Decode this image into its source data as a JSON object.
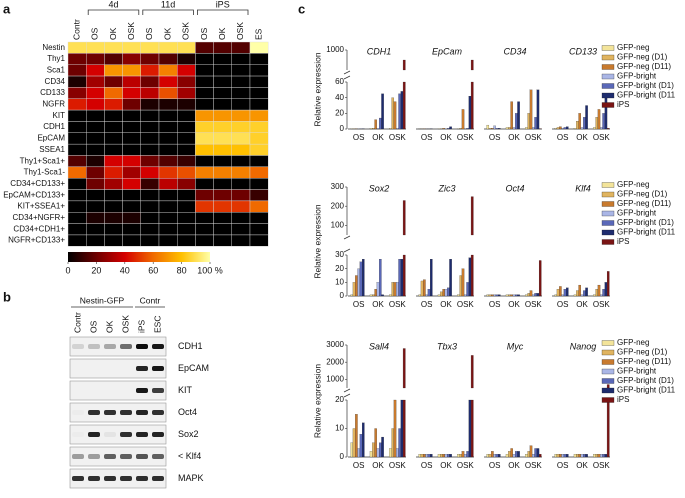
{
  "figure": {
    "panel_labels": [
      "a",
      "b",
      "c"
    ],
    "heatmap": {
      "groups": [
        "4d",
        "11d",
        "iPS"
      ],
      "columns": [
        "Contr",
        "OS",
        "OK",
        "OSK",
        "OS",
        "OK",
        "OSK",
        "OS",
        "OK",
        "OSK",
        "ES"
      ],
      "rows": [
        "Nestin",
        "Thy1",
        "Sca1",
        "CD34",
        "CD133",
        "NGFR",
        "KIT",
        "CDH1",
        "EpCAM",
        "SSEA1",
        "Thy1+Sca1+",
        "Thy1-Sca1-",
        "CD34+CD133+",
        "EpCAM+CD133+",
        "KIT+SSEA1+",
        "CD34+NGFR+",
        "CD34+CDH1+",
        "NGFR+CD133+"
      ],
      "values": [
        [
          90,
          90,
          90,
          90,
          90,
          90,
          90,
          15,
          15,
          15,
          100
        ],
        [
          20,
          20,
          15,
          25,
          20,
          15,
          5,
          0,
          0,
          0,
          0
        ],
        [
          20,
          40,
          70,
          70,
          45,
          65,
          40,
          0,
          0,
          0,
          0
        ],
        [
          5,
          30,
          20,
          35,
          20,
          40,
          25,
          0,
          0,
          0,
          0
        ],
        [
          25,
          40,
          60,
          40,
          35,
          55,
          30,
          0,
          0,
          0,
          0
        ],
        [
          45,
          40,
          45,
          20,
          5,
          5,
          5,
          0,
          0,
          0,
          0
        ],
        [
          0,
          0,
          0,
          0,
          0,
          0,
          0,
          70,
          70,
          70,
          70
        ],
        [
          0,
          0,
          0,
          0,
          0,
          0,
          0,
          85,
          85,
          85,
          85
        ],
        [
          0,
          0,
          0,
          0,
          0,
          0,
          0,
          90,
          90,
          90,
          85
        ],
        [
          0,
          0,
          0,
          0,
          0,
          0,
          0,
          80,
          80,
          80,
          85
        ],
        [
          15,
          5,
          40,
          40,
          20,
          15,
          10,
          0,
          0,
          0,
          0
        ],
        [
          60,
          20,
          45,
          30,
          40,
          50,
          55,
          65,
          65,
          65,
          60
        ],
        [
          0,
          20,
          30,
          40,
          10,
          35,
          25,
          0,
          0,
          0,
          0
        ],
        [
          0,
          0,
          0,
          0,
          0,
          0,
          0,
          20,
          20,
          20,
          10
        ],
        [
          0,
          0,
          0,
          0,
          0,
          0,
          0,
          50,
          50,
          50,
          60
        ],
        [
          0,
          5,
          5,
          5,
          0,
          0,
          0,
          0,
          0,
          0,
          0
        ],
        [
          0,
          0,
          0,
          0,
          0,
          0,
          0,
          0,
          0,
          0,
          0
        ],
        [
          0,
          0,
          0,
          0,
          0,
          0,
          0,
          0,
          0,
          0,
          0
        ]
      ],
      "colorbar": {
        "ticks": [
          0,
          20,
          40,
          60,
          80,
          {
            "value": 100,
            "label": "100 %"
          }
        ],
        "colors": [
          "#000000",
          "#6e0000",
          "#d40000",
          "#f06a00",
          "#ffc000",
          "#ffffa8"
        ]
      }
    },
    "blot": {
      "groups": [
        "Nestin-GFP",
        "Contr"
      ],
      "lanes": [
        "Contr",
        "OS",
        "OK",
        "OSK",
        "iPS",
        "ESC"
      ],
      "proteins": [
        "CDH1",
        "EpCAM",
        "KIT",
        "Oct4",
        "Sox2",
        "< Klf4",
        "MAPK"
      ]
    },
    "expression": {
      "ylabel": "Relative expression",
      "categories": [
        "OS",
        "OK",
        "OSK"
      ],
      "series": [
        {
          "name": "GFP-neg",
          "color": "#f3e49a"
        },
        {
          "name": "GFP-neg (D1)",
          "color": "#e0b460"
        },
        {
          "name": "GFP-neg (D11)",
          "color": "#c87a2e"
        },
        {
          "name": "GFP-bright",
          "color": "#aab6e6"
        },
        {
          "name": "GFP-bright (D1)",
          "color": "#5a68b8"
        },
        {
          "name": "GFP-bright (D11",
          "color": "#1e2c6e"
        },
        {
          "name": "iPS",
          "color": "#7a1414"
        }
      ],
      "rows": [
        {
          "ylim": [
            0,
            60
          ],
          "yticks": [
            0,
            20,
            40,
            60
          ],
          "upper": {
            "ylim": [
              800,
              1000
            ],
            "yticks": [
              1000
            ]
          },
          "panels": [
            {
              "gene": "CDH1",
              "values": [
                [
                  0.5,
                  1,
                  1
                ],
                [
                  0.5,
                  1,
                  40
                ],
                [
                  0.5,
                  12,
                  35
                ],
                [
                  0.5,
                  1,
                  1
                ],
                [
                  0.5,
                  14,
                  45
                ],
                [
                  0.5,
                  45,
                  48
                ],
                [
                  null,
                  null,
                  900
                ]
              ]
            },
            {
              "gene": "EpCam",
              "values": [
                [
                  0.2,
                  0.5,
                  0.5
                ],
                [
                  0.2,
                  0.5,
                  1
                ],
                [
                  0.5,
                  1,
                  25
                ],
                [
                  0.2,
                  0.5,
                  0.5
                ],
                [
                  0.2,
                  1,
                  1
                ],
                [
                  0.5,
                  3,
                  42
                ],
                [
                  null,
                  null,
                  900
                ]
              ]
            },
            {
              "gene": "CD34",
              "values": [
                [
                  5,
                  2,
                  2
                ],
                [
                  1,
                  2,
                  20
                ],
                [
                  1,
                  35,
                  50
                ],
                [
                  4,
                  2,
                  2
                ],
                [
                  1,
                  20,
                  15
                ],
                [
                  1,
                  35,
                  50
                ],
                [
                  null,
                  null,
                  0.5
                ]
              ]
            },
            {
              "gene": "CD133",
              "values": [
                [
                  1,
                  1,
                  2
                ],
                [
                  2,
                  10,
                  15
                ],
                [
                  3,
                  20,
                  25
                ],
                [
                  1,
                  2,
                  2
                ],
                [
                  2,
                  15,
                  20
                ],
                [
                  3,
                  30,
                  45
                ],
                [
                  null,
                  null,
                  1
                ]
              ]
            }
          ]
        },
        {
          "ylim": [
            0,
            30
          ],
          "yticks": [
            0,
            10,
            20,
            30
          ],
          "upper": {
            "ylim": [
              50,
              300
            ],
            "yticks": [
              100,
              200,
              300
            ]
          },
          "panels": [
            {
              "gene": "Sox2",
              "values": [
                [
                  1,
                  1,
                  1
                ],
                [
                  10,
                  1,
                  10
                ],
                [
                  15,
                  5,
                  10
                ],
                [
                  20,
                  10,
                  10
                ],
                [
                  25,
                  27,
                  27
                ],
                [
                  27,
                  1,
                  27
                ],
                [
                  null,
                  null,
                  230
                ]
              ]
            },
            {
              "gene": "Zic3",
              "values": [
                [
                  1,
                  1,
                  1
                ],
                [
                  11,
                  3,
                  15
                ],
                [
                  12,
                  5,
                  20
                ],
                [
                  1,
                  5,
                  1
                ],
                [
                  5,
                  6,
                  10
                ],
                [
                  27,
                  27,
                  28
                ],
                [
                  null,
                  null,
                  250
                ]
              ]
            },
            {
              "gene": "Oct4",
              "values": [
                [
                  1,
                  1,
                  1
                ],
                [
                  1,
                  1,
                  2
                ],
                [
                  1,
                  1,
                  4
                ],
                [
                  1,
                  1,
                  1
                ],
                [
                  1,
                  1,
                  2
                ],
                [
                  1,
                  1,
                  2
                ],
                [
                  null,
                  null,
                  26
                ]
              ]
            },
            {
              "gene": "Klf4",
              "values": [
                [
                  1,
                  1,
                  1
                ],
                [
                  5,
                  4,
                  5
                ],
                [
                  7,
                  8,
                  8
                ],
                [
                  1,
                  1,
                  1
                ],
                [
                  5,
                  4,
                  5
                ],
                [
                  6,
                  6,
                  10
                ],
                [
                  null,
                  null,
                  18
                ]
              ]
            }
          ]
        },
        {
          "ylim": [
            0,
            20
          ],
          "yticks": [
            0,
            10,
            20
          ],
          "upper": {
            "ylim": [
              500,
              3000
            ],
            "yticks": [
              1000,
              2000,
              3000
            ]
          },
          "panels": [
            {
              "gene": "Sall4",
              "values": [
                [
                  5,
                  2,
                  3
                ],
                [
                  10,
                  5,
                  10
                ],
                [
                  15,
                  10,
                  20
                ],
                [
                  3,
                  3,
                  3
                ],
                [
                  8,
                  5,
                  10
                ],
                [
                  12,
                  7,
                  20
                ],
                [
                  null,
                  null,
                  2800
                ]
              ]
            },
            {
              "gene": "Tbx3",
              "values": [
                [
                  1,
                  1,
                  1
                ],
                [
                  1,
                  1,
                  1
                ],
                [
                  1,
                  1,
                  2
                ],
                [
                  1,
                  1,
                  1
                ],
                [
                  1,
                  1,
                  2
                ],
                [
                  1,
                  1,
                  20
                ],
                [
                  null,
                  null,
                  2400
                ]
              ]
            },
            {
              "gene": "Myc",
              "values": [
                [
                  1,
                  1,
                  1
                ],
                [
                  1,
                  2,
                  2
                ],
                [
                  2,
                  3,
                  4
                ],
                [
                  1,
                  1,
                  1
                ],
                [
                  1,
                  2,
                  3
                ],
                [
                  1,
                  2,
                  3
                ],
                [
                  null,
                  null,
                  1
                ]
              ]
            },
            {
              "gene": "Nanog",
              "values": [
                [
                  1,
                  1,
                  1
                ],
                [
                  1,
                  1,
                  1
                ],
                [
                  1,
                  1,
                  1
                ],
                [
                  1,
                  1,
                  1
                ],
                [
                  1,
                  1,
                  1
                ],
                [
                  1,
                  1,
                  1
                ],
                [
                  null,
                  null,
                  700
                ]
              ]
            }
          ]
        }
      ]
    }
  }
}
